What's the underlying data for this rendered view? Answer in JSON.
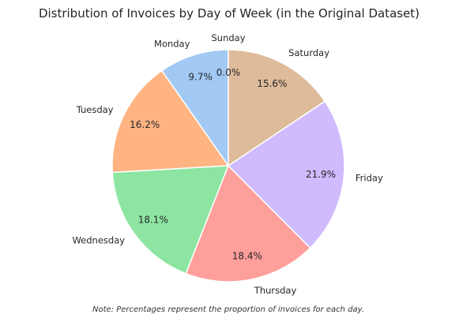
{
  "chart_data": {
    "type": "pie",
    "title": "Distribution of Invoices by Day of Week (in the Original Dataset)",
    "categories": [
      "Sunday",
      "Monday",
      "Tuesday",
      "Wednesday",
      "Thursday",
      "Friday",
      "Saturday"
    ],
    "values": [
      0.0,
      9.7,
      16.2,
      18.1,
      18.4,
      21.9,
      15.6
    ],
    "value_labels": [
      "0.0%",
      "9.7%",
      "16.2%",
      "18.1%",
      "18.4%",
      "21.9%",
      "15.6%"
    ],
    "colors": [
      "#ff7f7f",
      "#a1c9f4",
      "#ffb482",
      "#8de5a1",
      "#ff9f9b",
      "#d0bbff",
      "#debb9b"
    ],
    "label_colors": [
      "#ff0000",
      "#262626",
      "#262626",
      "#262626",
      "#262626",
      "#262626",
      "#262626"
    ],
    "start_angle_deg": 90,
    "direction": "counterclockwise",
    "note": "Note: Percentages represent the proportion of invoices for each day."
  }
}
